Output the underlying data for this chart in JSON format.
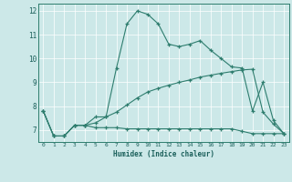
{
  "xlabel": "Humidex (Indice chaleur)",
  "background_color": "#cce8e8",
  "line_color": "#2e7d6e",
  "xlim": [
    -0.5,
    23.5
  ],
  "ylim": [
    6.5,
    12.3
  ],
  "yticks": [
    7,
    8,
    9,
    10,
    11,
    12
  ],
  "xticks": [
    0,
    1,
    2,
    3,
    4,
    5,
    6,
    7,
    8,
    9,
    10,
    11,
    12,
    13,
    14,
    15,
    16,
    17,
    18,
    19,
    20,
    21,
    22,
    23
  ],
  "series1_x": [
    0,
    1,
    2,
    3,
    4,
    5,
    6,
    7,
    8,
    9,
    10,
    11,
    12,
    13,
    14,
    15,
    16,
    17,
    18,
    19,
    20,
    21,
    22,
    23
  ],
  "series1_y": [
    7.8,
    6.75,
    6.75,
    7.2,
    7.2,
    7.55,
    7.55,
    9.6,
    11.45,
    12.0,
    11.85,
    11.45,
    10.6,
    10.5,
    10.6,
    10.75,
    10.35,
    10.0,
    9.65,
    9.6,
    7.8,
    9.0,
    7.4,
    6.85
  ],
  "series2_x": [
    0,
    1,
    2,
    3,
    4,
    5,
    6,
    7,
    8,
    9,
    10,
    11,
    12,
    13,
    14,
    15,
    16,
    17,
    18,
    19,
    20,
    21,
    22,
    23
  ],
  "series2_y": [
    7.8,
    6.75,
    6.75,
    7.2,
    7.2,
    7.1,
    7.1,
    7.1,
    7.05,
    7.05,
    7.05,
    7.05,
    7.05,
    7.05,
    7.05,
    7.05,
    7.05,
    7.05,
    7.05,
    6.95,
    6.85,
    6.85,
    6.85,
    6.85
  ],
  "series3_x": [
    0,
    1,
    2,
    3,
    4,
    5,
    6,
    7,
    8,
    9,
    10,
    11,
    12,
    13,
    14,
    15,
    16,
    17,
    18,
    19,
    20,
    21,
    22,
    23
  ],
  "series3_y": [
    7.8,
    6.75,
    6.75,
    7.2,
    7.2,
    7.3,
    7.55,
    7.75,
    8.05,
    8.35,
    8.6,
    8.75,
    8.88,
    9.0,
    9.1,
    9.22,
    9.3,
    9.38,
    9.45,
    9.52,
    9.55,
    7.75,
    7.25,
    6.85
  ]
}
